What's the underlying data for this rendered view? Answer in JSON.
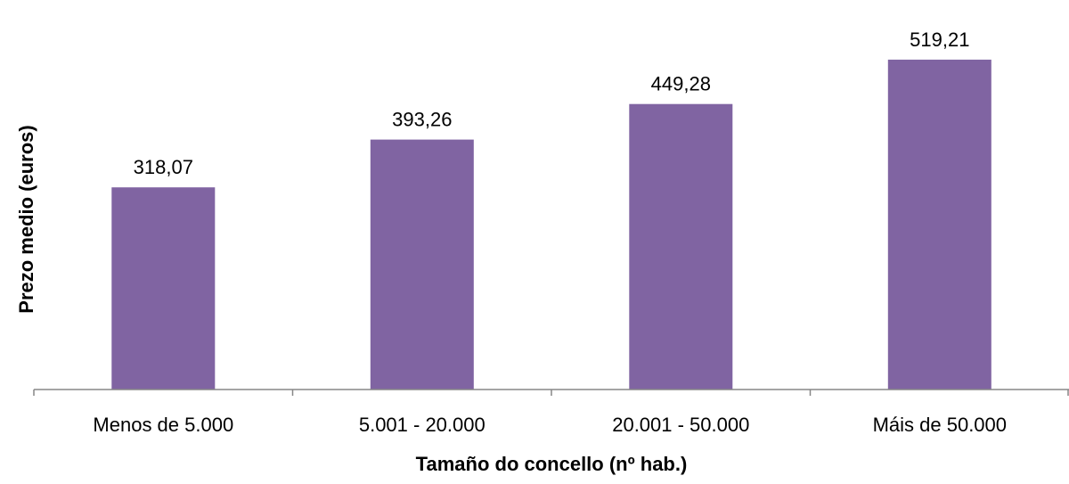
{
  "chart_data": {
    "type": "bar",
    "title": "",
    "xlabel": "Tamaño do concello (nº hab.)",
    "ylabel": "Prezo medio (euros)",
    "categories": [
      "Menos de 5.000",
      "5.001 - 20.000",
      "20.001 - 50.000",
      "Máis de 50.000"
    ],
    "values": [
      318.07,
      393.26,
      449.28,
      519.21
    ],
    "value_labels": [
      "318,07",
      "393,26",
      "449,28",
      "519,21"
    ],
    "ylim": [
      0,
      600
    ],
    "grid": false,
    "legend": "none",
    "bar_color": "#8064a2",
    "axis_color": "#878787"
  }
}
